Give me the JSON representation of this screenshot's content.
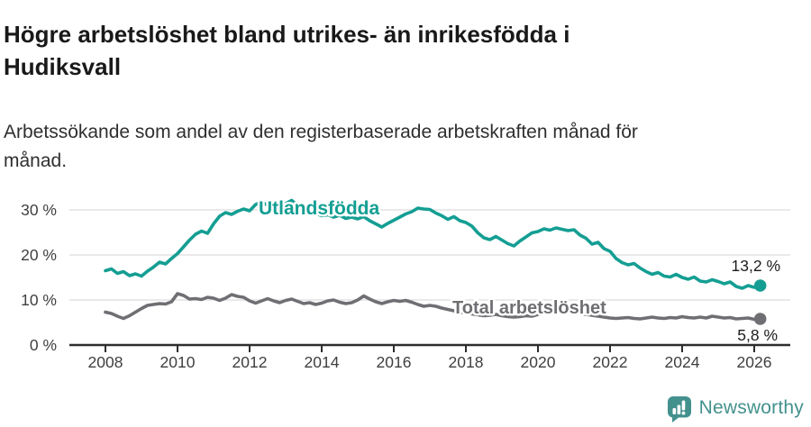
{
  "header": {
    "title": "Högre arbetslöshet bland utrikes- än inrikesfödda i Hudiksvall",
    "subtitle": "Arbetssökande som andel av den registerbaserade arbetskraften månad för månad."
  },
  "chart_data": {
    "type": "line",
    "y_unit": "%",
    "x_start": 2008,
    "x_step": 0.16667,
    "xlim": [
      2007.5,
      2027
    ],
    "ylim": [
      0,
      34
    ],
    "grid": true,
    "legend_position": "inline-labels",
    "xticks": [
      {
        "value": 2008,
        "label": "2008"
      },
      {
        "value": 2010,
        "label": "2010"
      },
      {
        "value": 2012,
        "label": "2012"
      },
      {
        "value": 2014,
        "label": "2014"
      },
      {
        "value": 2016,
        "label": "2016"
      },
      {
        "value": 2018,
        "label": "2018"
      },
      {
        "value": 2020,
        "label": "2020"
      },
      {
        "value": 2022,
        "label": "2022"
      },
      {
        "value": 2024,
        "label": "2024"
      },
      {
        "value": 2026,
        "label": "2026"
      }
    ],
    "yticks": [
      {
        "value": 0,
        "label": "0 %"
      },
      {
        "value": 10,
        "label": "10 %"
      },
      {
        "value": 20,
        "label": "20 %"
      },
      {
        "value": 30,
        "label": "30 %"
      }
    ],
    "colors": {
      "grid": "#dcdcdc",
      "axis": "#2e2e2e",
      "tick_text": "#3f3f3f",
      "value_text": "#1c1c1c"
    },
    "series": [
      {
        "name": "Utlandsfödda",
        "color": "#149e93",
        "end_label": "13,2 %",
        "values": [
          16.5,
          16.9,
          15.9,
          16.3,
          15.4,
          15.8,
          15.3,
          16.4,
          17.3,
          18.4,
          18.0,
          19.2,
          20.3,
          21.8,
          23.3,
          24.6,
          25.3,
          24.8,
          26.9,
          28.6,
          29.4,
          29.0,
          29.7,
          30.2,
          29.8,
          31.2,
          31.8,
          31.0,
          30.6,
          30.2,
          31.4,
          32.1,
          31.0,
          29.6,
          30.0,
          29.2,
          28.7,
          28.9,
          28.4,
          28.8,
          28.1,
          28.4,
          28.0,
          28.5,
          27.6,
          26.9,
          26.2,
          27.0,
          27.7,
          28.4,
          29.1,
          29.6,
          30.4,
          30.2,
          30.1,
          29.3,
          28.7,
          27.9,
          28.5,
          27.6,
          27.2,
          26.4,
          24.9,
          23.8,
          23.4,
          24.1,
          23.3,
          22.5,
          22.0,
          23.1,
          24.0,
          24.9,
          25.2,
          25.8,
          25.5,
          26.0,
          25.7,
          25.4,
          25.6,
          24.4,
          23.7,
          22.4,
          22.8,
          21.4,
          20.8,
          19.2,
          18.3,
          17.8,
          18.1,
          17.1,
          16.3,
          15.7,
          16.1,
          15.3,
          15.1,
          15.7,
          15.0,
          14.6,
          15.1,
          14.2,
          14.0,
          14.5,
          14.1,
          13.6,
          14.0,
          13.0,
          12.6,
          13.2,
          12.8,
          13.2
        ]
      },
      {
        "name": "Total arbetslöshet",
        "color": "#6f6f73",
        "end_label": "5,8 %",
        "values": [
          7.3,
          7.0,
          6.4,
          5.9,
          6.5,
          7.3,
          8.1,
          8.8,
          9.0,
          9.2,
          9.1,
          9.6,
          11.4,
          11.0,
          10.2,
          10.3,
          10.1,
          10.6,
          10.4,
          9.9,
          10.4,
          11.2,
          10.8,
          10.6,
          9.8,
          9.3,
          9.8,
          10.3,
          9.8,
          9.4,
          9.9,
          10.2,
          9.7,
          9.2,
          9.4,
          9.0,
          9.3,
          9.8,
          10.0,
          9.5,
          9.2,
          9.4,
          10.0,
          10.9,
          10.2,
          9.6,
          9.2,
          9.6,
          9.9,
          9.7,
          9.9,
          9.5,
          9.0,
          8.6,
          8.8,
          8.6,
          8.2,
          7.9,
          7.6,
          7.3,
          7.1,
          6.9,
          6.7,
          6.5,
          6.6,
          6.8,
          6.5,
          6.3,
          6.2,
          6.3,
          6.5,
          6.4,
          6.8,
          7.8,
          8.3,
          8.0,
          7.7,
          7.4,
          7.2,
          7.0,
          6.8,
          6.6,
          6.4,
          6.2,
          6.0,
          5.9,
          6.0,
          6.1,
          5.9,
          5.8,
          6.0,
          6.2,
          6.0,
          5.9,
          6.1,
          6.0,
          6.3,
          6.1,
          6.0,
          6.2,
          6.0,
          6.4,
          6.2,
          6.0,
          6.1,
          5.8,
          5.9,
          6.0,
          5.7,
          5.8
        ]
      }
    ]
  },
  "footer": {
    "brand": "Newsworthy",
    "brand_color": "#43918d"
  }
}
